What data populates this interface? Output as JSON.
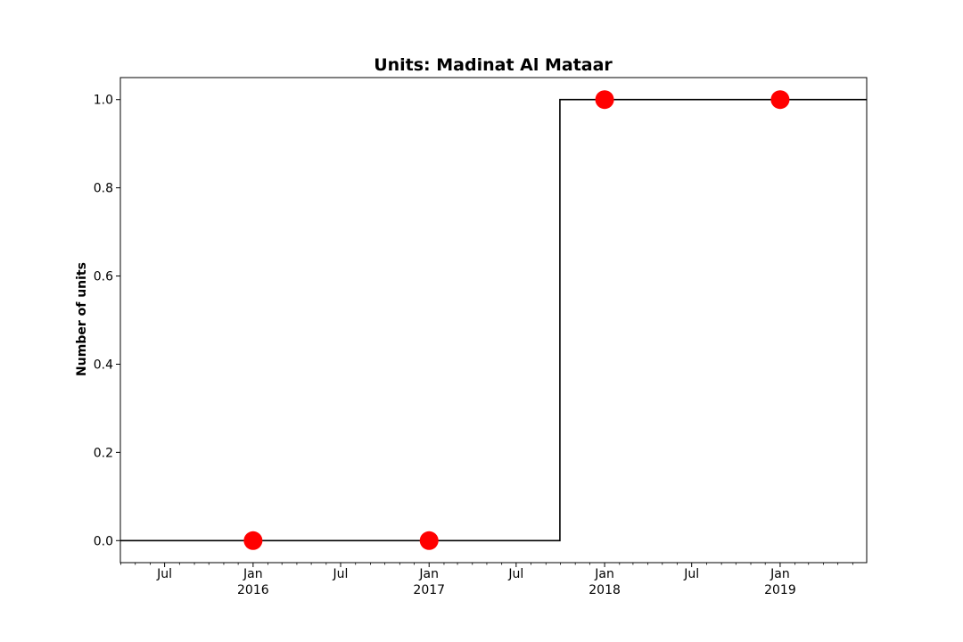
{
  "chart_data": {
    "type": "line",
    "title": "Units: Madinat Al Mataar",
    "xlabel": "",
    "ylabel": "Number of units",
    "step_series": {
      "x": [
        "2015-03-31",
        "2017-09-30",
        "2017-09-30",
        "2019-06-30"
      ],
      "y": [
        0,
        0,
        1,
        1
      ],
      "color": "#000000"
    },
    "markers": {
      "x": [
        "2016-01-01",
        "2017-01-01",
        "2018-01-01",
        "2019-01-01"
      ],
      "y": [
        0,
        0,
        1,
        1
      ],
      "color": "#ff0000"
    },
    "xlim": [
      "2015-03-31",
      "2019-06-30"
    ],
    "ylim": [
      -0.05,
      1.05
    ],
    "yticks": [
      0.0,
      0.2,
      0.4,
      0.6,
      0.8,
      1.0
    ],
    "ytick_labels": [
      "0.0",
      "0.2",
      "0.4",
      "0.6",
      "0.8",
      "1.0"
    ],
    "xticks": [
      {
        "date": "2015-07-01",
        "label": "Jul",
        "label2": ""
      },
      {
        "date": "2016-01-01",
        "label": "Jan",
        "label2": "2016"
      },
      {
        "date": "2016-07-01",
        "label": "Jul",
        "label2": ""
      },
      {
        "date": "2017-01-01",
        "label": "Jan",
        "label2": "2017"
      },
      {
        "date": "2017-07-01",
        "label": "Jul",
        "label2": ""
      },
      {
        "date": "2018-01-01",
        "label": "Jan",
        "label2": "2018"
      },
      {
        "date": "2018-07-01",
        "label": "Jul",
        "label2": ""
      },
      {
        "date": "2019-01-01",
        "label": "Jan",
        "label2": "2019"
      }
    ],
    "grid": false,
    "legend": "none"
  }
}
